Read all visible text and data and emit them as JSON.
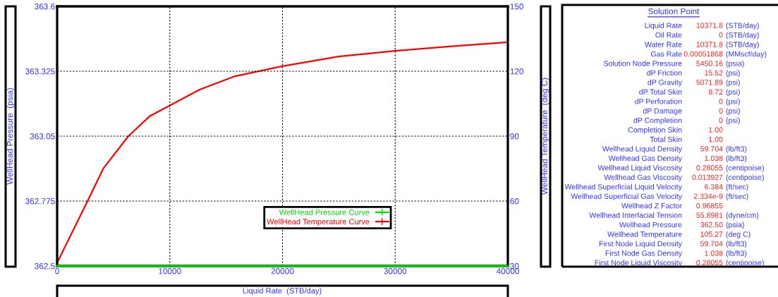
{
  "chart_data": [
    {
      "type": "line",
      "xlabel": "Liquid Rate  (STB/day)",
      "ylabel": "WellHead Pressure  (psia)",
      "y2label": "WellHead Temperature  (deg C)",
      "xlim": [
        0,
        40000
      ],
      "xticks": [
        0,
        10000,
        20000,
        30000,
        40000
      ],
      "ylim": [
        362.5,
        363.6
      ],
      "yticks": [
        362.5,
        362.775,
        363.05,
        363.325,
        363.6
      ],
      "y2lim": [
        30,
        150
      ],
      "y2ticks": [
        30,
        60,
        90,
        120,
        150
      ],
      "grid": true,
      "legend": "bottom",
      "line_style": "solid",
      "series": [
        {
          "name": "WellHead Pressure Curve",
          "color": "#00dd00",
          "x": [
            0,
            40000
          ],
          "values": [
            362.5,
            362.5
          ]
        },
        {
          "name": "WellHead Temperature Curve",
          "color": "#ff0000",
          "axis": "y2",
          "x": [
            0,
            2630,
            4130,
            6320,
            8260,
            9950,
            12650,
            15780,
            19970,
            24980,
            29980,
            35430,
            39870
          ],
          "values": [
            31.5,
            59.3,
            75.3,
            90,
            99.4,
            104,
            111.5,
            117.7,
            122.3,
            126.8,
            129.4,
            131.7,
            133.4
          ]
        }
      ]
    },
    {
      "type": "other",
      "title": "Solution Point",
      "annotations": [
        [
          "Liquid Rate",
          "10371.8",
          "(STB/day)"
        ],
        [
          "Oil Rate",
          "0",
          "(STB/day)"
        ],
        [
          "Water Rate",
          "10371.8",
          "(STB/day)"
        ],
        [
          "Gas Rate",
          "0.00051868",
          "(MMscf/day)"
        ],
        [
          "Solution Node Pressure",
          "5450.16",
          "(psia)"
        ],
        [
          "dP Friction",
          "15.52",
          "(psi)"
        ],
        [
          "dP Gravity",
          "5071.89",
          "(psi)"
        ],
        [
          "dP Total Skin",
          "8.72",
          "(psi)"
        ],
        [
          "dP Perforation",
          "0",
          "(psi)"
        ],
        [
          "dP Damage",
          "0",
          "(psi)"
        ],
        [
          "dP Completion",
          "0",
          "(psi)"
        ],
        [
          "Completion Skin",
          "1.00",
          null
        ],
        [
          "Total Skin",
          "1.00",
          null
        ],
        [
          "Wellhead Liquid Density",
          "59.704",
          "(lb/ft3)"
        ],
        [
          "Wellhead Gas Density",
          "1.038",
          "(lb/ft3)"
        ],
        [
          "Wellhead Liquid Viscosity",
          "0.28055",
          "(centipoise)"
        ],
        [
          "Wellhead Gas Viscosity",
          "0.013927",
          "(centipoise)"
        ],
        [
          "Wellhead Superficial Liquid Velocity",
          "6.384",
          "(ft/sec)"
        ],
        [
          "Wellhead Superficial Gas Velocity",
          "2.334e-9",
          "(ft/sec)"
        ],
        [
          "Wellhead Z Factor",
          "0.96855",
          null
        ],
        [
          "Wellhead Interfacial Tension",
          "55.8981",
          "(dyne/cm)"
        ],
        [
          "Wellhead Pressure",
          "362.50",
          "(psia)"
        ],
        [
          "Wellhead Temperature",
          "105.27",
          "(deg C)"
        ],
        [
          "First Node Liquid Density",
          "59.704",
          "(lb/ft3)"
        ],
        [
          "First Node Gas Density",
          "1.038",
          "(lb/ft3)"
        ],
        [
          "First Node Liquid Viscosity",
          "0.28055",
          "(centipoise)"
        ]
      ]
    }
  ]
}
